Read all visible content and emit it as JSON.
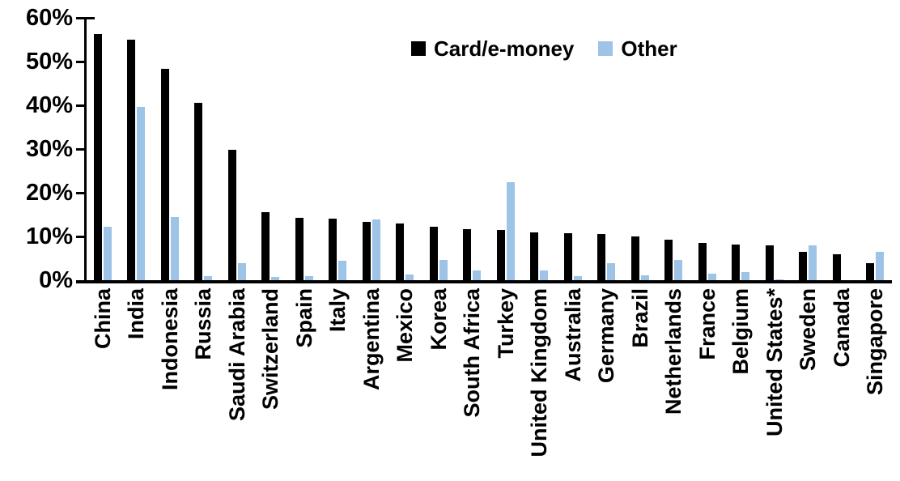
{
  "chart_data": {
    "type": "bar",
    "title": "",
    "xlabel": "",
    "ylabel": "",
    "ylim": [
      0,
      60
    ],
    "yticks": [
      "0%",
      "10%",
      "20%",
      "30%",
      "40%",
      "50%",
      "60%"
    ],
    "grid": false,
    "legend_position": "top-center",
    "categories": [
      "China",
      "India",
      "Indonesia",
      "Russia",
      "Saudi Arabia",
      "Switzerland",
      "Spain",
      "Italy",
      "Argentina",
      "Mexico",
      "Korea",
      "South Africa",
      "Turkey",
      "United Kingdom",
      "Australia",
      "Germany",
      "Brazil",
      "Netherlands",
      "France",
      "Belgium",
      "United States*",
      "Sweden",
      "Canada",
      "Singapore"
    ],
    "series": [
      {
        "name": "Card/e-money",
        "color": "#000000",
        "values": [
          56.3,
          55.0,
          48.3,
          40.5,
          29.8,
          15.6,
          14.2,
          14.1,
          13.4,
          12.9,
          12.2,
          11.6,
          11.5,
          11.0,
          10.7,
          10.5,
          10.0,
          9.2,
          8.6,
          8.2,
          7.9,
          6.4,
          5.9,
          3.8
        ]
      },
      {
        "name": "Other",
        "color": "#9DC3E6",
        "values": [
          12.3,
          39.7,
          14.5,
          0.9,
          3.8,
          0.8,
          1.0,
          4.5,
          13.8,
          1.3,
          4.6,
          2.2,
          22.4,
          2.2,
          1.0,
          3.9,
          1.1,
          4.7,
          1.4,
          1.9,
          0.2,
          7.9,
          0.0,
          6.5
        ]
      }
    ]
  },
  "legend": {
    "card_label": "Card/e-money",
    "other_label": "Other"
  }
}
